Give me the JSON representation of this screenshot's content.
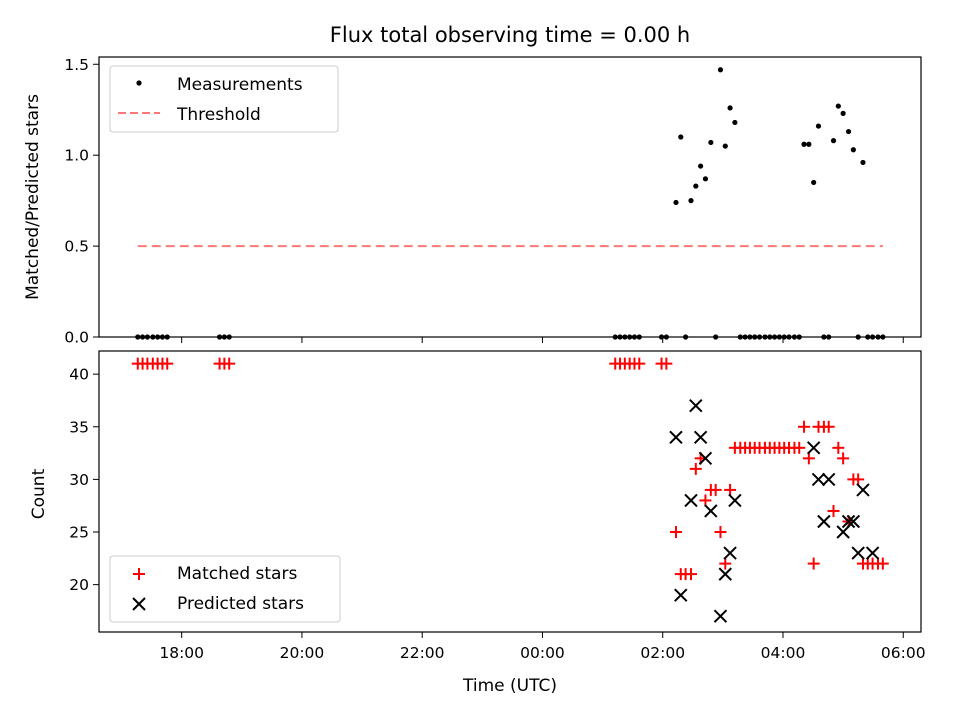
{
  "chart_data": [
    {
      "type": "scatter",
      "title": "Flux total observing time = 0.00 h",
      "xlabel": "",
      "ylabel": "Matched/Predicted stars",
      "xlim": [
        16.625,
        30.295
      ],
      "ylim": [
        0.0,
        1.54
      ],
      "yticks": [
        0.0,
        0.5,
        1.0,
        1.5
      ],
      "ytick_labels": [
        "0.0",
        "0.5",
        "1.0",
        "1.5"
      ],
      "legend_position": "top-left",
      "series": [
        {
          "name": "Measurements",
          "marker": "dot",
          "color": "#000000",
          "x": [
            17.27,
            17.35,
            17.43,
            17.52,
            17.6,
            17.68,
            17.76,
            18.63,
            18.71,
            18.79,
            25.21,
            25.29,
            25.37,
            25.45,
            25.53,
            25.61,
            25.98,
            26.06,
            26.22,
            26.3,
            26.38,
            26.47,
            26.55,
            26.63,
            26.71,
            26.8,
            26.88,
            26.96,
            27.04,
            27.12,
            27.2,
            27.29,
            27.37,
            27.45,
            27.53,
            27.61,
            27.7,
            27.78,
            27.86,
            27.94,
            28.02,
            28.1,
            28.19,
            28.27,
            28.35,
            28.43,
            28.51,
            28.59,
            28.68,
            28.76,
            28.84,
            28.92,
            29.0,
            29.09,
            29.17,
            29.25,
            29.33,
            29.41,
            29.49,
            29.58,
            29.66
          ],
          "y": [
            0,
            0,
            0,
            0,
            0,
            0,
            0,
            0,
            0,
            0,
            0,
            0,
            0,
            0,
            0,
            0,
            0,
            0,
            0.74,
            1.1,
            0,
            0.75,
            0.83,
            0.94,
            0.87,
            1.07,
            0,
            1.47,
            1.05,
            1.26,
            1.18,
            0,
            0,
            0,
            0,
            0,
            0,
            0,
            0,
            0,
            0,
            0,
            0,
            0,
            1.06,
            1.06,
            0.85,
            1.16,
            0,
            0,
            1.08,
            1.27,
            1.23,
            1.13,
            1.03,
            0,
            0.96,
            0,
            0,
            0,
            0
          ]
        },
        {
          "name": "Threshold",
          "line_style": "dashed",
          "color": "#ff7777",
          "x": [
            17.27,
            29.66
          ],
          "y": [
            0.5,
            0.5
          ]
        }
      ]
    },
    {
      "type": "scatter",
      "title": "",
      "xlabel": "Time (UTC)",
      "ylabel": "Count",
      "xlim": [
        16.625,
        30.295
      ],
      "ylim": [
        15.5,
        42.2
      ],
      "xticks": [
        18,
        20,
        22,
        24,
        26,
        28,
        30
      ],
      "xtick_labels": [
        "18:00",
        "20:00",
        "22:00",
        "00:00",
        "02:00",
        "04:00",
        "06:00"
      ],
      "yticks": [
        20,
        25,
        30,
        35,
        40
      ],
      "ytick_labels": [
        "20",
        "25",
        "30",
        "35",
        "40"
      ],
      "legend_position": "bottom-left",
      "series": [
        {
          "name": "Matched stars",
          "marker": "plus",
          "color": "#ff0000",
          "x": [
            17.27,
            17.35,
            17.43,
            17.52,
            17.6,
            17.68,
            17.76,
            18.63,
            18.71,
            18.79,
            25.21,
            25.29,
            25.37,
            25.45,
            25.53,
            25.61,
            25.98,
            26.06,
            26.22,
            26.3,
            26.38,
            26.47,
            26.55,
            26.63,
            26.71,
            26.8,
            26.88,
            26.96,
            27.04,
            27.12,
            27.2,
            27.29,
            27.37,
            27.45,
            27.53,
            27.61,
            27.7,
            27.78,
            27.86,
            27.94,
            28.02,
            28.1,
            28.19,
            28.27,
            28.35,
            28.43,
            28.51,
            28.59,
            28.68,
            28.76,
            28.84,
            28.92,
            29.0,
            29.09,
            29.17,
            29.25,
            29.33,
            29.41,
            29.49,
            29.58,
            29.66
          ],
          "y": [
            41,
            41,
            41,
            41,
            41,
            41,
            41,
            41,
            41,
            41,
            41,
            41,
            41,
            41,
            41,
            41,
            41,
            41,
            25,
            21,
            21,
            21,
            31,
            32,
            28,
            29,
            29,
            25,
            22,
            29,
            33,
            33,
            33,
            33,
            33,
            33,
            33,
            33,
            33,
            33,
            33,
            33,
            33,
            33,
            35,
            32,
            22,
            35,
            35,
            35,
            27,
            33,
            32,
            26,
            30,
            30,
            22,
            22,
            22,
            22,
            22
          ]
        },
        {
          "name": "Predicted stars",
          "marker": "x",
          "color": "#000000",
          "x": [
            26.22,
            26.3,
            26.47,
            26.55,
            26.63,
            26.71,
            26.8,
            26.96,
            27.04,
            27.12,
            27.2,
            28.51,
            28.59,
            28.68,
            28.76,
            29.0,
            29.09,
            29.17,
            29.25,
            29.33,
            29.49
          ],
          "y": [
            34,
            19,
            28,
            37,
            34,
            32,
            27,
            17,
            21,
            23,
            28,
            33,
            30,
            26,
            30,
            25,
            26,
            26,
            23,
            29,
            23
          ]
        }
      ]
    }
  ]
}
